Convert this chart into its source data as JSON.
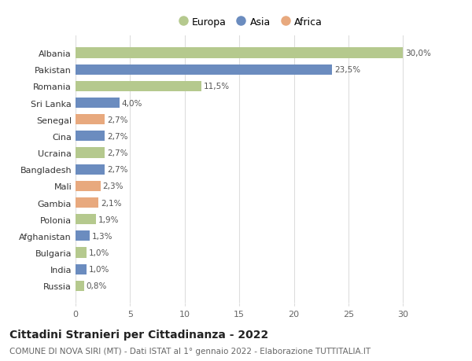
{
  "categories": [
    "Russia",
    "India",
    "Bulgaria",
    "Afghanistan",
    "Polonia",
    "Gambia",
    "Mali",
    "Bangladesh",
    "Ucraina",
    "Cina",
    "Senegal",
    "Sri Lanka",
    "Romania",
    "Pakistan",
    "Albania"
  ],
  "values": [
    0.8,
    1.0,
    1.0,
    1.3,
    1.9,
    2.1,
    2.3,
    2.7,
    2.7,
    2.7,
    2.7,
    4.0,
    11.5,
    23.5,
    30.0
  ],
  "labels": [
    "0,8%",
    "1,0%",
    "1,0%",
    "1,3%",
    "1,9%",
    "2,1%",
    "2,3%",
    "2,7%",
    "2,7%",
    "2,7%",
    "2,7%",
    "4,0%",
    "11,5%",
    "23,5%",
    "30,0%"
  ],
  "continents": [
    "Europa",
    "Asia",
    "Europa",
    "Asia",
    "Europa",
    "Africa",
    "Africa",
    "Asia",
    "Europa",
    "Asia",
    "Africa",
    "Asia",
    "Europa",
    "Asia",
    "Europa"
  ],
  "colors": {
    "Europa": "#b5c98e",
    "Asia": "#6b8cbf",
    "Africa": "#e8a97e"
  },
  "legend_order": [
    "Europa",
    "Asia",
    "Africa"
  ],
  "xlim": [
    0,
    32
  ],
  "xticks": [
    0,
    5,
    10,
    15,
    20,
    25,
    30
  ],
  "title": "Cittadini Stranieri per Cittadinanza - 2022",
  "subtitle": "COMUNE DI NOVA SIRI (MT) - Dati ISTAT al 1° gennaio 2022 - Elaborazione TUTTITALIA.IT",
  "background_color": "#ffffff",
  "grid_color": "#dddddd",
  "bar_height": 0.62,
  "title_fontsize": 10,
  "subtitle_fontsize": 7.5,
  "label_fontsize": 7.5,
  "tick_fontsize": 8
}
